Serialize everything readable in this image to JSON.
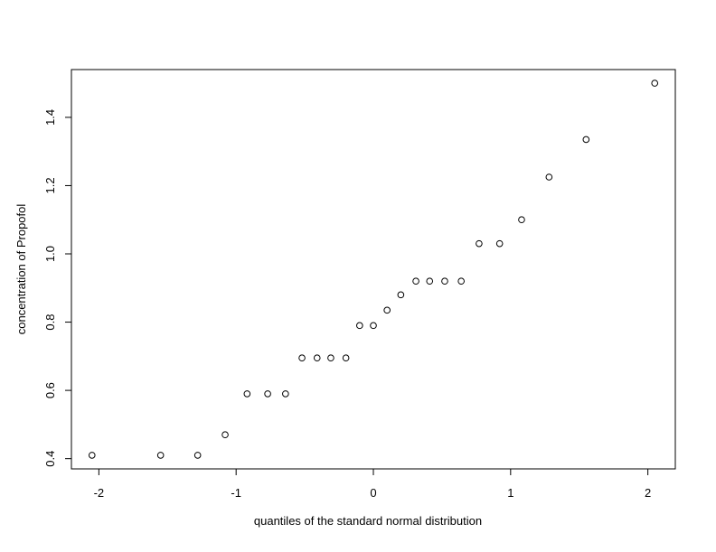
{
  "chart_data": {
    "type": "scatter",
    "title": "",
    "xlabel": "quantiles of the standard normal distribution",
    "ylabel": "concentration of Propofol",
    "xlim": [
      -2.2,
      2.2
    ],
    "ylim": [
      0.37,
      1.54
    ],
    "xticks": [
      -2,
      -1,
      0,
      1,
      2
    ],
    "xtick_labels": [
      "-2",
      "-1",
      "0",
      "1",
      "2"
    ],
    "yticks": [
      0.4,
      0.6,
      0.8,
      1.0,
      1.2,
      1.4
    ],
    "ytick_labels": [
      "0.4",
      "0.6",
      "0.8",
      "1.0",
      "1.2",
      "1.4"
    ],
    "grid": false,
    "legend": "none",
    "marker": "open-circle",
    "point_color": "#000000",
    "x": [
      -2.05,
      -1.55,
      -1.28,
      -1.08,
      -0.92,
      -0.77,
      -0.64,
      -0.52,
      -0.41,
      -0.31,
      -0.2,
      -0.1,
      0.0,
      0.1,
      0.2,
      0.31,
      0.41,
      0.52,
      0.64,
      0.77,
      0.92,
      1.08,
      1.28,
      1.55,
      2.05
    ],
    "y": [
      0.41,
      0.41,
      0.41,
      0.47,
      0.59,
      0.59,
      0.59,
      0.695,
      0.695,
      0.695,
      0.695,
      0.79,
      0.79,
      0.835,
      0.88,
      0.92,
      0.92,
      0.92,
      0.92,
      1.03,
      1.03,
      1.1,
      1.225,
      1.335,
      1.5
    ]
  }
}
